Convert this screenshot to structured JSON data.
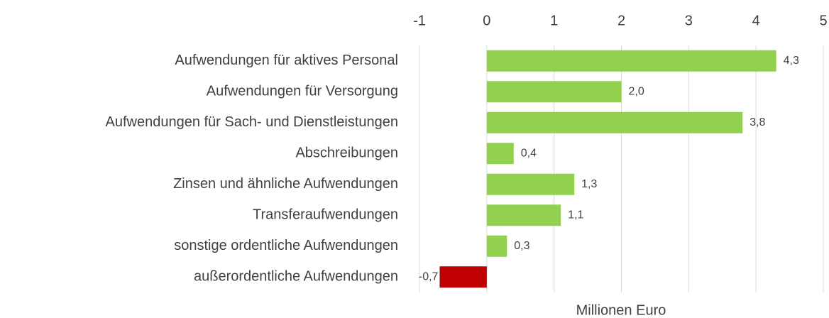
{
  "chart_data": {
    "type": "barh",
    "categories": [
      "Aufwendungen für aktives Personal",
      "Aufwendungen für Versorgung",
      "Aufwendungen für Sach- und Dienstleistungen",
      "Abschreibungen",
      "Zinsen und ähnliche Aufwendungen",
      "Transferaufwendungen",
      "sonstige ordentliche Aufwendungen",
      "außerordentliche Aufwendungen"
    ],
    "values": [
      4.3,
      2.0,
      3.8,
      0.4,
      1.3,
      1.1,
      0.3,
      -0.7
    ],
    "value_labels": [
      "4,3",
      "2,0",
      "3,8",
      "0,4",
      "1,3",
      "1,1",
      "0,3",
      "-0,7"
    ],
    "colors": [
      "#92d050",
      "#92d050",
      "#92d050",
      "#92d050",
      "#92d050",
      "#92d050",
      "#92d050",
      "#c00000"
    ],
    "xlabel": "Millionen Euro",
    "xlim": [
      -1,
      5
    ],
    "xticks": [
      -1,
      0,
      1,
      2,
      3,
      4,
      5
    ],
    "grid": true
  }
}
